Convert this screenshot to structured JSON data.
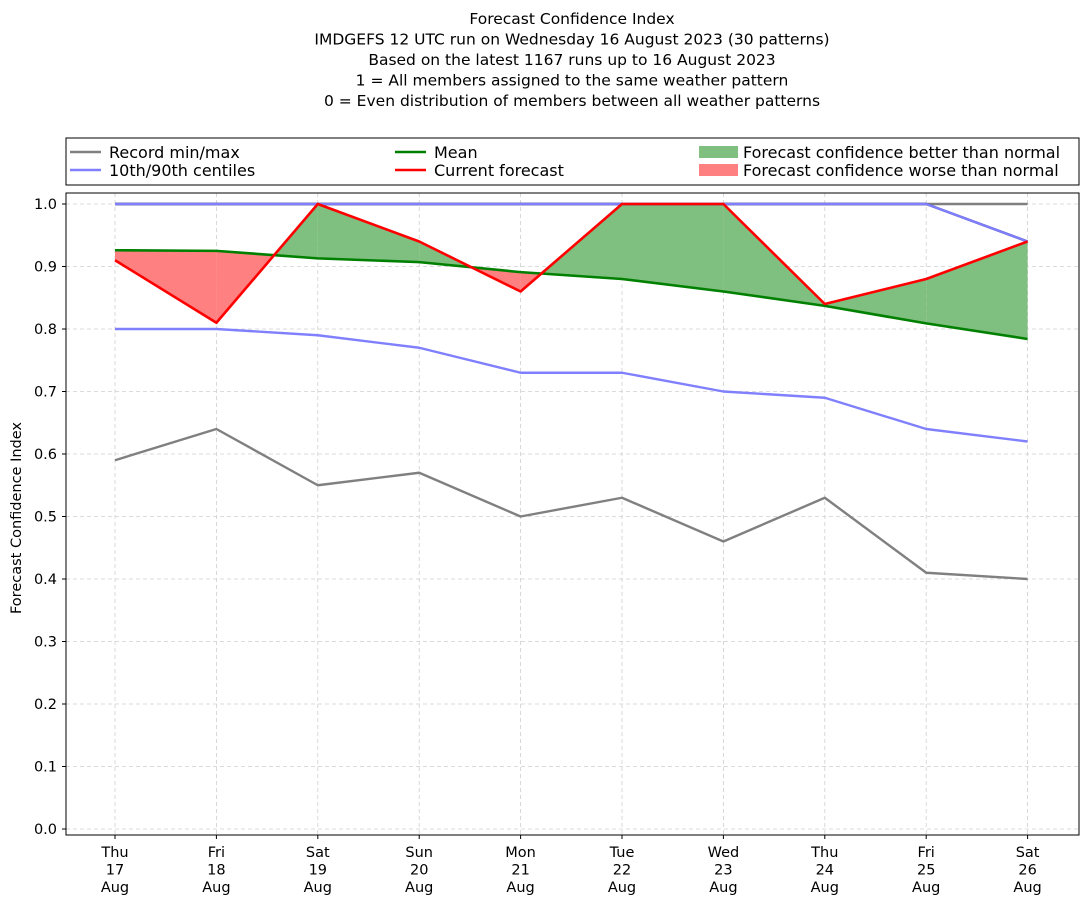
{
  "chart_data": {
    "type": "line",
    "title_lines": [
      "Forecast Confidence Index",
      "IMDGEFS 12 UTC run on Wednesday 16 August 2023 (30 patterns)",
      "Based on the latest 1167 runs up to 16 August 2023",
      "1 = All members assigned to the same weather pattern",
      "0 = Even distribution of members between all weather patterns"
    ],
    "ylabel": "Forecast Confidence Index",
    "xlabel": "",
    "ylim": [
      0.0,
      1.0
    ],
    "yticks": [
      "0.0",
      "0.1",
      "0.2",
      "0.3",
      "0.4",
      "0.5",
      "0.6",
      "0.7",
      "0.8",
      "0.9",
      "1.0"
    ],
    "grid": true,
    "legend_position": "top, above plot, three columns",
    "categories": [
      [
        "Thu",
        "17",
        "Aug"
      ],
      [
        "Fri",
        "18",
        "Aug"
      ],
      [
        "Sat",
        "19",
        "Aug"
      ],
      [
        "Sun",
        "20",
        "Aug"
      ],
      [
        "Mon",
        "21",
        "Aug"
      ],
      [
        "Tue",
        "22",
        "Aug"
      ],
      [
        "Wed",
        "23",
        "Aug"
      ],
      [
        "Thu",
        "24",
        "Aug"
      ],
      [
        "Fri",
        "25",
        "Aug"
      ],
      [
        "Sat",
        "26",
        "Aug"
      ]
    ],
    "series": [
      {
        "name": "Record min/max",
        "kind": "minmax",
        "color": "#808080",
        "min": [
          0.59,
          0.64,
          0.55,
          0.57,
          0.5,
          0.53,
          0.46,
          0.53,
          0.41,
          0.4
        ],
        "max": [
          1.0,
          1.0,
          1.0,
          1.0,
          1.0,
          1.0,
          1.0,
          1.0,
          1.0,
          1.0
        ]
      },
      {
        "name": "10th/90th centiles",
        "kind": "centiles",
        "color": "#8080ff",
        "p10": [
          0.8,
          0.8,
          0.79,
          0.77,
          0.73,
          0.73,
          0.7,
          0.69,
          0.64,
          0.62
        ],
        "p90": [
          1.0,
          1.0,
          1.0,
          1.0,
          1.0,
          1.0,
          1.0,
          1.0,
          1.0,
          0.94
        ]
      },
      {
        "name": "Mean",
        "kind": "mean",
        "color": "#008000",
        "values": [
          0.926,
          0.925,
          0.913,
          0.907,
          0.891,
          0.88,
          0.86,
          0.837,
          0.809,
          0.784
        ]
      },
      {
        "name": "Current forecast",
        "kind": "forecast",
        "color": "#ff0000",
        "values": [
          0.91,
          0.81,
          1.0,
          0.94,
          0.86,
          1.0,
          1.0,
          0.84,
          0.88,
          0.94
        ]
      }
    ],
    "fills": [
      {
        "name": "Forecast confidence better than normal",
        "color": "#7fbf7f"
      },
      {
        "name": "Forecast confidence worse than normal",
        "color": "#ff8080"
      }
    ]
  }
}
